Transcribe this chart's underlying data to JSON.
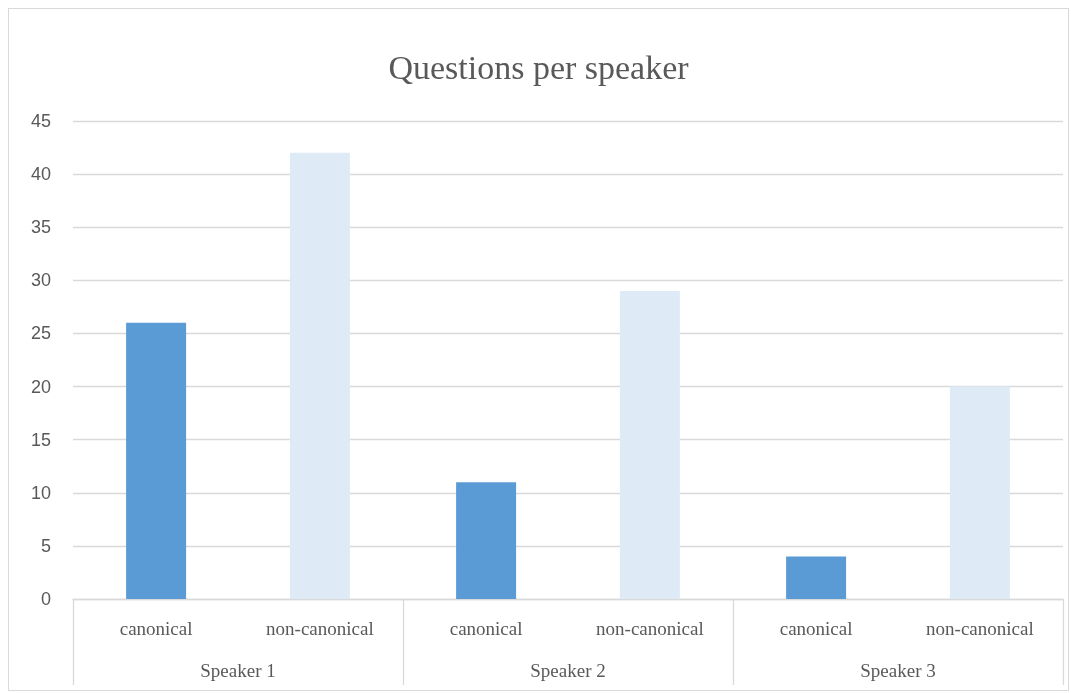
{
  "chart_data": {
    "type": "bar",
    "title": "Questions per speaker",
    "categories": [
      "Speaker 1",
      "Speaker 2",
      "Speaker 3"
    ],
    "series": [
      {
        "name": "canonical",
        "color": "#5b9bd5",
        "values": [
          26,
          11,
          4
        ]
      },
      {
        "name": "non-canonical",
        "color": "#deebf7",
        "values": [
          42,
          29,
          20
        ]
      }
    ],
    "ylim": [
      0,
      45
    ],
    "yticks": [
      0,
      5,
      10,
      15,
      20,
      25,
      30,
      35,
      40,
      45
    ],
    "grid": "y"
  }
}
